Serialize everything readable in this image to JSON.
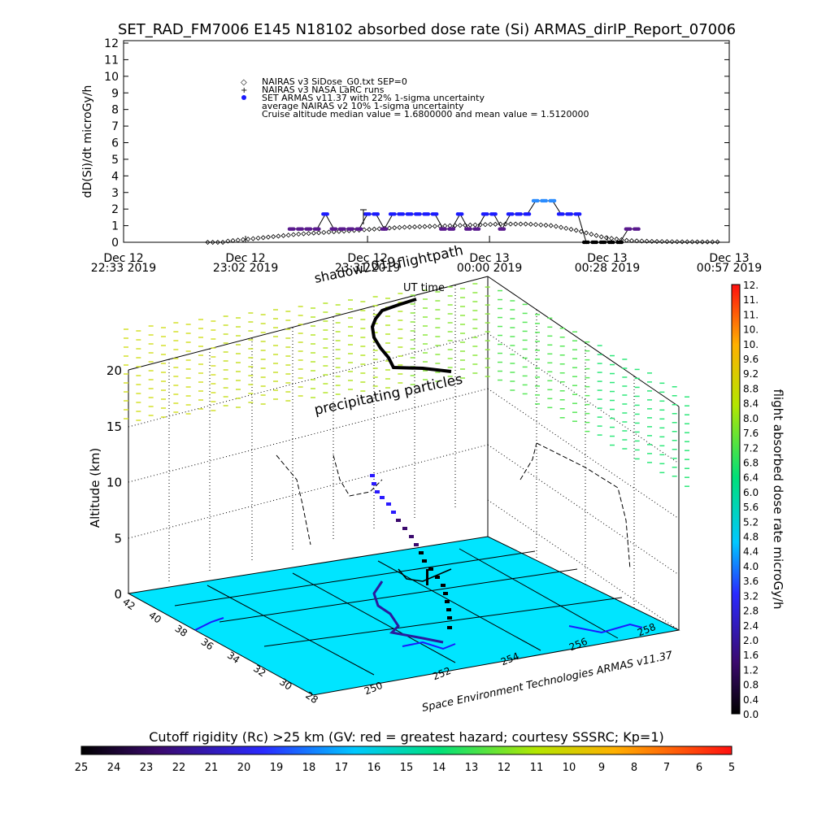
{
  "title": "SET_RAD_FM7006  E145 N18102 absorbed dose rate (Si) ARMAS_dirIP_Report_07006",
  "chart_data": [
    {
      "type": "scatter",
      "id": "dose-timeseries",
      "ylabel": "dD(Si)/dt microGy/h",
      "ylim": [
        0,
        12
      ],
      "yticks": [
        0,
        1,
        2,
        3,
        4,
        5,
        6,
        7,
        8,
        9,
        10,
        11,
        12
      ],
      "xlim_minutes": [
        0,
        144
      ],
      "xticks": [
        {
          "t": 0,
          "line1": "Dec 12",
          "line2": "22:33 2019"
        },
        {
          "t": 29,
          "line1": "Dec 12",
          "line2": "23:02 2019"
        },
        {
          "t": 58,
          "line1": "Dec 12",
          "line2": "23:31 2019"
        },
        {
          "t": 87,
          "line1": "Dec 13",
          "line2": "00:00 2019"
        },
        {
          "t": 115,
          "line1": "Dec 13",
          "line2": "00:28 2019"
        },
        {
          "t": 144,
          "line1": "Dec 13",
          "line2": "00:57 2019"
        }
      ],
      "legend": [
        {
          "symbol": "◇",
          "text": "NAIRAS v3 SiDose_G0.txt SEP=0"
        },
        {
          "symbol": "+",
          "text": "NAIRAS v3 NASA LaRC runs"
        },
        {
          "symbol": "●",
          "text": "SET ARMAS v11.37 with 22% 1-sigma uncertainty"
        },
        {
          "symbol": "",
          "text": "average NAIRAS v2 10% 1-sigma uncertainty"
        },
        {
          "symbol": "",
          "text": "Cruise altitude median value = 1.6800000 and mean value = 1.5120000"
        }
      ],
      "series": [
        {
          "name": "SET ARMAS v11.37 with 22% 1-sigma uncertainty",
          "color": "#1a1aff",
          "t": [
            40,
            42,
            44,
            46,
            48,
            50,
            52,
            54,
            56,
            58,
            60,
            62,
            64,
            66,
            68,
            70,
            72,
            74,
            76,
            78,
            80,
            82,
            84,
            86,
            88,
            90,
            92,
            94,
            96,
            98,
            100,
            102,
            104,
            106,
            108,
            110,
            112,
            114,
            116,
            118,
            120,
            122
          ],
          "vals": [
            0.8,
            0.8,
            0.8,
            0.8,
            1.7,
            0.8,
            0.8,
            0.8,
            0.8,
            1.7,
            1.7,
            0.8,
            1.7,
            1.7,
            1.7,
            1.7,
            1.7,
            1.7,
            0.8,
            0.8,
            1.7,
            0.8,
            0.8,
            1.7,
            1.7,
            0.8,
            1.7,
            1.7,
            1.7,
            2.5,
            2.5,
            2.5,
            1.7,
            1.7,
            1.7,
            0,
            0,
            0,
            0,
            0,
            0.8,
            0.8
          ]
        },
        {
          "name": "NAIRAS v3 SiDose_G0.txt SEP=0",
          "color": "#000000",
          "t": [
            24,
            30,
            36,
            42,
            48,
            54,
            60,
            66,
            72,
            78,
            84,
            90,
            96,
            102,
            108,
            114,
            120,
            126,
            132,
            138
          ],
          "vals": [
            0.05,
            0.2,
            0.35,
            0.5,
            0.6,
            0.7,
            0.8,
            0.9,
            0.95,
            1.0,
            1.05,
            1.1,
            1.1,
            1.0,
            0.7,
            0.3,
            0.1,
            0.05,
            0.03,
            0.02
          ]
        }
      ]
    },
    {
      "type": "3d-scatter",
      "id": "flightpath-3d",
      "zlabel": "Altitude (km)",
      "zlim": [
        0,
        20
      ],
      "zticks": [
        0,
        5,
        10,
        15,
        20
      ],
      "lat_ticks": [
        "42",
        "40",
        "38",
        "36",
        "34",
        "32",
        "30",
        "28"
      ],
      "lon_ticks": [
        "250",
        "252",
        "254",
        "256",
        "258"
      ],
      "annotations": [
        "shadow2019",
        "flightpath",
        "UT time",
        "precipitating particles"
      ],
      "credit": "Space Environment Technologies ARMAS v11.37",
      "colorbar": {
        "label": "flight absorbed dose rate microGy/h",
        "ticks": [
          "0.0",
          "0.4",
          "0.8",
          "1.2",
          "1.6",
          "2.0",
          "2.4",
          "2.8",
          "3.2",
          "3.6",
          "4.0",
          "4.4",
          "4.8",
          "5.2",
          "5.6",
          "6.0",
          "6.4",
          "6.8",
          "7.2",
          "7.6",
          "8.0",
          "8.4",
          "8.8",
          "9.2",
          "9.6",
          "10.",
          "10.",
          "11.",
          "11.",
          "12."
        ]
      }
    },
    {
      "type": "colorbar",
      "id": "cutoff-rigidity",
      "title": "Cutoff rigidity (Rc) >25 km (GV: red = greatest hazard; courtesy SSSRC; Kp=1)",
      "ticks": [
        "25",
        "24",
        "23",
        "22",
        "21",
        "20",
        "19",
        "18",
        "17",
        "16",
        "15",
        "14",
        "13",
        "12",
        "11",
        "10",
        "9",
        "8",
        "7",
        "6",
        "5"
      ]
    }
  ],
  "colors": {
    "surface": "#00e5ff",
    "flight_track": "#2a1a9e",
    "sep_cloud_high": "#d4e02a",
    "sep_cloud_low": "#2ee87a",
    "accent_blue": "#1a1aff"
  }
}
